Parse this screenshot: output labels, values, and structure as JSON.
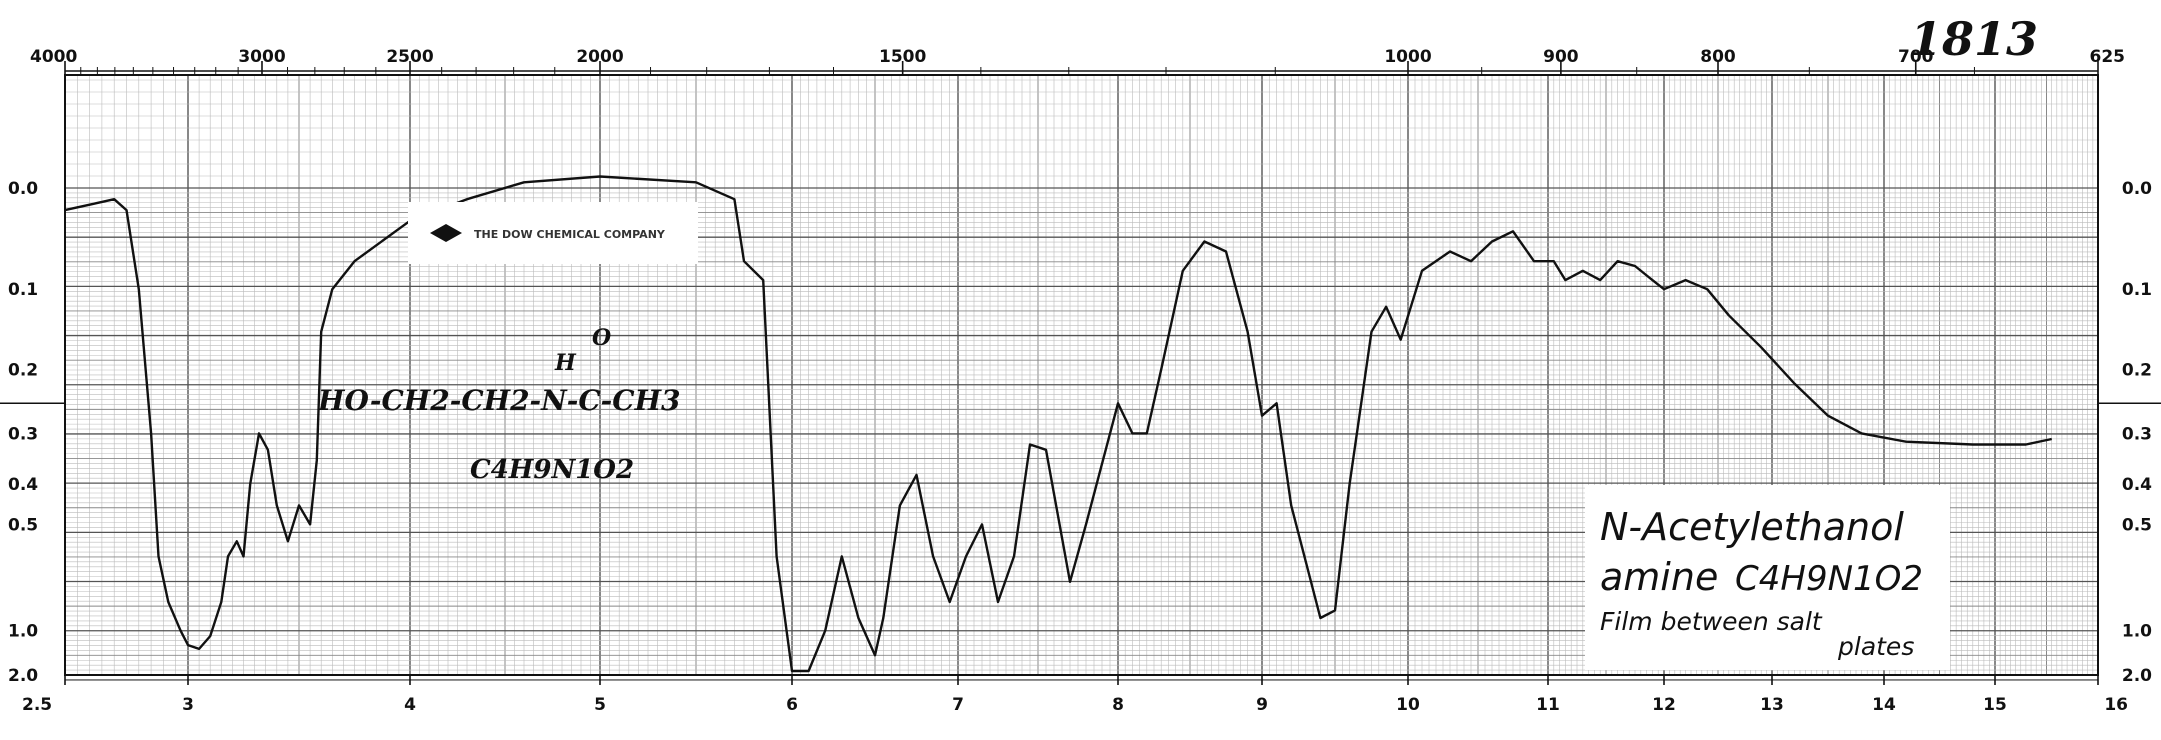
{
  "chart_data": {
    "type": "line",
    "top_axis": {
      "ticks": [
        {
          "x": 2.5,
          "label": "4000"
        },
        {
          "x": 3.3333,
          "label": "3000"
        },
        {
          "x": 4.0,
          "label": "2500"
        },
        {
          "x": 5.0,
          "label": "2000"
        },
        {
          "x": 6.6667,
          "label": "1500"
        },
        {
          "x": 10.0,
          "label": "1000"
        },
        {
          "x": 11.111,
          "label": "900"
        },
        {
          "x": 12.5,
          "label": "800"
        },
        {
          "x": 14.286,
          "label": "700"
        },
        {
          "x": 16.0,
          "label": "625"
        }
      ]
    },
    "bottom_axis": {
      "ticks": [
        "2.5",
        "3",
        "4",
        "5",
        "6",
        "7",
        "8",
        "9",
        "10",
        "11",
        "12",
        "13",
        "14",
        "15",
        "16"
      ]
    },
    "y_axis": {
      "scale": "absorbance",
      "ticks": [
        {
          "value": 0.0,
          "label": "0.0"
        },
        {
          "value": 0.1,
          "label": "0.1"
        },
        {
          "value": 0.2,
          "label": "0.2"
        },
        {
          "value": 0.3,
          "label": "0.3"
        },
        {
          "value": 0.4,
          "label": "0.4"
        },
        {
          "value": 0.5,
          "label": "0.5"
        },
        {
          "value": 1.0,
          "label": "1.0"
        },
        {
          "value": 2.0,
          "label": "2.0"
        }
      ]
    },
    "series": [
      {
        "points": [
          [
            2.5,
            0.02
          ],
          [
            2.6,
            0.015
          ],
          [
            2.7,
            0.01
          ],
          [
            2.75,
            0.02
          ],
          [
            2.8,
            0.1
          ],
          [
            2.85,
            0.3
          ],
          [
            2.88,
            0.6
          ],
          [
            2.92,
            0.8
          ],
          [
            2.97,
            1.0
          ],
          [
            3.0,
            1.15
          ],
          [
            3.05,
            1.2
          ],
          [
            3.1,
            1.05
          ],
          [
            3.15,
            0.8
          ],
          [
            3.18,
            0.6
          ],
          [
            3.22,
            0.55
          ],
          [
            3.25,
            0.6
          ],
          [
            3.28,
            0.4
          ],
          [
            3.32,
            0.3
          ],
          [
            3.36,
            0.33
          ],
          [
            3.4,
            0.45
          ],
          [
            3.45,
            0.55
          ],
          [
            3.5,
            0.45
          ],
          [
            3.55,
            0.5
          ],
          [
            3.58,
            0.35
          ],
          [
            3.6,
            0.15
          ],
          [
            3.65,
            0.1
          ],
          [
            3.75,
            0.07
          ],
          [
            4.0,
            0.03
          ],
          [
            4.3,
            0.01
          ],
          [
            4.6,
            -0.005
          ],
          [
            5.0,
            -0.01
          ],
          [
            5.5,
            -0.005
          ],
          [
            5.7,
            0.01
          ],
          [
            5.75,
            0.07
          ],
          [
            5.85,
            0.09
          ],
          [
            5.92,
            0.6
          ],
          [
            6.0,
            1.8
          ],
          [
            6.1,
            1.85
          ],
          [
            6.2,
            1.0
          ],
          [
            6.3,
            0.6
          ],
          [
            6.4,
            0.9
          ],
          [
            6.5,
            1.3
          ],
          [
            6.55,
            0.9
          ],
          [
            6.65,
            0.45
          ],
          [
            6.75,
            0.38
          ],
          [
            6.85,
            0.6
          ],
          [
            6.95,
            0.8
          ],
          [
            7.05,
            0.6
          ],
          [
            7.15,
            0.5
          ],
          [
            7.25,
            0.8
          ],
          [
            7.35,
            0.6
          ],
          [
            7.45,
            0.32
          ],
          [
            7.55,
            0.33
          ],
          [
            7.7,
            0.7
          ],
          [
            7.8,
            0.5
          ],
          [
            8.0,
            0.25
          ],
          [
            8.1,
            0.3
          ],
          [
            8.2,
            0.3
          ],
          [
            8.3,
            0.2
          ],
          [
            8.45,
            0.08
          ],
          [
            8.6,
            0.05
          ],
          [
            8.75,
            0.06
          ],
          [
            8.9,
            0.15
          ],
          [
            9.0,
            0.27
          ],
          [
            9.1,
            0.25
          ],
          [
            9.2,
            0.45
          ],
          [
            9.4,
            0.9
          ],
          [
            9.5,
            0.85
          ],
          [
            9.6,
            0.4
          ],
          [
            9.75,
            0.15
          ],
          [
            9.85,
            0.12
          ],
          [
            9.95,
            0.16
          ],
          [
            10.1,
            0.08
          ],
          [
            10.3,
            0.06
          ],
          [
            10.45,
            0.07
          ],
          [
            10.6,
            0.05
          ],
          [
            10.75,
            0.04
          ],
          [
            10.9,
            0.07
          ],
          [
            11.05,
            0.07
          ],
          [
            11.15,
            0.09
          ],
          [
            11.3,
            0.08
          ],
          [
            11.45,
            0.09
          ],
          [
            11.6,
            0.07
          ],
          [
            11.75,
            0.075
          ],
          [
            11.9,
            0.09
          ],
          [
            12.0,
            0.1
          ],
          [
            12.2,
            0.09
          ],
          [
            12.4,
            0.1
          ],
          [
            12.6,
            0.13
          ],
          [
            12.9,
            0.17
          ],
          [
            13.2,
            0.22
          ],
          [
            13.5,
            0.27
          ],
          [
            13.8,
            0.3
          ],
          [
            14.2,
            0.315
          ],
          [
            14.8,
            0.32
          ],
          [
            15.3,
            0.32
          ],
          [
            15.55,
            0.31
          ]
        ]
      }
    ],
    "annotations": {
      "number": "1813",
      "company_logo_text": "THE DOW CHEMICAL COMPANY",
      "structure_formula": "HO-CH2-CH2-N-C-CH3",
      "structure_H": "H",
      "structure_O": "O",
      "molecular_formula": "C4H9N1O2",
      "name_line1": "N-Acetylethanol",
      "name_line2": "amine",
      "name_formula": "C4H9N1O2",
      "sample_line1": "Film between salt",
      "sample_line2": "plates"
    },
    "grid": true
  }
}
